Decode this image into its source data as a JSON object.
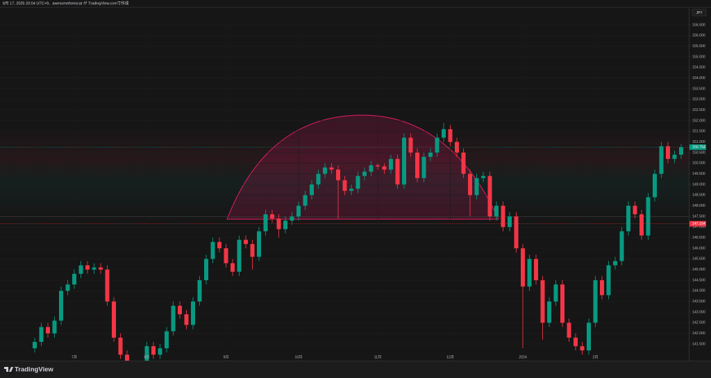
{
  "header": "8月 17, 2025 20:04 UTC+9、awesomeforexcat が TradingView.comで作成",
  "logo": "TradingView",
  "chart_data": {
    "type": "candlestick",
    "currency": "JPY",
    "up_color": "#089981",
    "down_color": "#f23645",
    "ylim": [
      141.11,
      157.28
    ],
    "yticks": [
      {
        "value": 141.5,
        "label": "141.500"
      },
      {
        "value": 142,
        "label": "142.000"
      },
      {
        "value": 142.5,
        "label": "142.500"
      },
      {
        "value": 143,
        "label": "143.000"
      },
      {
        "value": 143.5,
        "label": "143.500"
      },
      {
        "value": 144,
        "label": "144.000"
      },
      {
        "value": 144.5,
        "label": "144.500"
      },
      {
        "value": 145,
        "label": "145.000"
      },
      {
        "value": 145.5,
        "label": "145.500"
      },
      {
        "value": 146,
        "label": "146.000"
      },
      {
        "value": 146.5,
        "label": "146.500"
      },
      {
        "value": 147,
        "label": "147.000"
      },
      {
        "value": 147.5,
        "label": "147.500"
      },
      {
        "value": 148,
        "label": "148.000"
      },
      {
        "value": 148.5,
        "label": "148.500"
      },
      {
        "value": 149,
        "label": "149.000"
      },
      {
        "value": 149.5,
        "label": "149.500"
      },
      {
        "value": 150,
        "label": "150.000"
      },
      {
        "value": 150.5,
        "label": "150.500"
      },
      {
        "value": 151,
        "label": "151.000"
      },
      {
        "value": 151.5,
        "label": "151.500"
      },
      {
        "value": 152,
        "label": "152.000"
      },
      {
        "value": 152.5,
        "label": "152.500"
      },
      {
        "value": 153,
        "label": "153.000"
      },
      {
        "value": 153.5,
        "label": "153.500"
      },
      {
        "value": 154,
        "label": "154.000"
      },
      {
        "value": 154.5,
        "label": "154.500"
      },
      {
        "value": 155,
        "label": "155.000"
      },
      {
        "value": 155.5,
        "label": "155.500"
      },
      {
        "value": 156,
        "label": "156.000"
      },
      {
        "value": 156.5,
        "label": "156.500"
      }
    ],
    "xticks": [
      {
        "value": 6,
        "label": "7月"
      },
      {
        "value": 17,
        "label": "8月"
      },
      {
        "value": 29,
        "label": "9月"
      },
      {
        "value": 40,
        "label": "10月"
      },
      {
        "value": 52,
        "label": "11月"
      },
      {
        "value": 63,
        "label": "12月"
      },
      {
        "value": 74,
        "label": "2024"
      },
      {
        "value": 85,
        "label": "2月"
      }
    ],
    "price_labels": [
      {
        "value": 150.754,
        "label": "150.754",
        "color": "#089981"
      },
      {
        "value": 147.154,
        "label": "147.154",
        "color": "#f23645"
      }
    ],
    "open": [
      141.3,
      141.6,
      142.3,
      142.0,
      142.6,
      144.0,
      144.3,
      144.8,
      145.2,
      145.0,
      145.1,
      145.0,
      143.5,
      141.8,
      141.0,
      140.4,
      140.2,
      140.5,
      141.4,
      141.0,
      141.3,
      142.1,
      143.3,
      142.9,
      142.4,
      143.5,
      144.5,
      145.5,
      146.3,
      146.0,
      145.3,
      144.9,
      146.4,
      146.2,
      145.6,
      146.8,
      147.6,
      147.4,
      146.9,
      147.3,
      147.5,
      148.0,
      148.5,
      149.0,
      149.5,
      149.8,
      149.7,
      149.2,
      148.7,
      148.8,
      149.4,
      149.6,
      149.9,
      149.85,
      149.7,
      150.2,
      149.0,
      151.2,
      150.5,
      149.3,
      150.3,
      150.5,
      151.2,
      151.6,
      151.0,
      150.5,
      149.5,
      148.5,
      149.3,
      149.4,
      147.5,
      148.0,
      147.0,
      147.5,
      146.0,
      144.2,
      145.5,
      144.5,
      142.5,
      143.5,
      144.3,
      142.5,
      141.8,
      141.4,
      141.2,
      142.5,
      144.5,
      143.8,
      145.2,
      145.4,
      146.8,
      148.0,
      147.6,
      146.6,
      148.4,
      149.5,
      150.8,
      150.2,
      150.4
    ],
    "high": [
      141.8,
      142.5,
      142.5,
      142.8,
      144.2,
      144.5,
      145.0,
      145.4,
      145.4,
      145.3,
      145.3,
      145.2,
      143.7,
      142.0,
      141.2,
      140.6,
      140.7,
      141.6,
      141.6,
      141.5,
      142.3,
      143.5,
      143.5,
      143.1,
      143.7,
      144.7,
      145.7,
      146.5,
      146.5,
      146.2,
      145.5,
      146.6,
      146.6,
      146.4,
      147.0,
      147.8,
      147.8,
      147.6,
      147.5,
      147.7,
      148.2,
      148.7,
      149.2,
      149.7,
      150.0,
      150.0,
      149.9,
      149.4,
      149.0,
      149.6,
      149.8,
      150.1,
      150.0,
      150.0,
      150.4,
      150.4,
      151.4,
      151.4,
      150.7,
      150.5,
      150.7,
      151.4,
      151.9,
      151.8,
      151.2,
      150.7,
      149.7,
      149.5,
      149.6,
      149.6,
      148.2,
      148.2,
      147.7,
      147.7,
      146.2,
      145.7,
      145.7,
      144.7,
      143.7,
      144.5,
      144.5,
      142.7,
      142.0,
      141.6,
      142.7,
      144.7,
      144.7,
      145.4,
      145.6,
      147.0,
      148.2,
      148.2,
      147.8,
      148.6,
      149.7,
      151.0,
      151.0,
      150.6,
      150.9
    ],
    "low": [
      141.1,
      141.4,
      141.8,
      141.8,
      142.4,
      143.8,
      144.1,
      144.6,
      144.8,
      144.8,
      144.8,
      143.3,
      141.6,
      140.8,
      140.2,
      140.0,
      140.0,
      140.3,
      140.8,
      140.8,
      141.1,
      141.9,
      142.7,
      142.2,
      142.2,
      143.3,
      144.3,
      145.3,
      145.8,
      145.1,
      144.7,
      144.7,
      146.0,
      145.0,
      145.4,
      146.6,
      147.2,
      146.5,
      146.7,
      147.1,
      147.3,
      147.8,
      148.3,
      148.8,
      149.3,
      149.5,
      147.4,
      148.5,
      148.5,
      148.6,
      149.2,
      149.4,
      149.7,
      149.5,
      149.5,
      148.8,
      148.8,
      150.3,
      149.1,
      149.1,
      150.1,
      150.3,
      151.0,
      150.8,
      150.3,
      149.3,
      147.5,
      148.3,
      149.1,
      147.3,
      147.3,
      146.8,
      146.8,
      145.8,
      141.3,
      144.0,
      144.3,
      141.7,
      142.3,
      143.3,
      142.3,
      141.6,
      141.2,
      141.0,
      141.0,
      142.3,
      143.6,
      143.6,
      145.0,
      145.2,
      146.6,
      147.4,
      146.4,
      146.4,
      148.2,
      149.3,
      150.0,
      150.0,
      150.2
    ],
    "close": [
      141.6,
      142.3,
      142.0,
      142.6,
      144.0,
      144.3,
      144.8,
      145.2,
      145.0,
      145.1,
      145.0,
      143.5,
      141.8,
      141.0,
      140.4,
      140.2,
      140.5,
      141.4,
      141.0,
      141.3,
      142.1,
      143.3,
      142.9,
      142.4,
      143.5,
      144.5,
      145.5,
      146.3,
      146.0,
      145.3,
      144.9,
      146.4,
      146.2,
      145.6,
      146.8,
      147.6,
      147.4,
      146.9,
      147.3,
      147.5,
      148.0,
      148.5,
      149.0,
      149.5,
      149.8,
      149.7,
      149.2,
      148.7,
      148.8,
      149.4,
      149.6,
      149.9,
      149.85,
      149.7,
      150.2,
      149.0,
      151.2,
      150.5,
      149.3,
      150.3,
      150.5,
      151.2,
      151.6,
      151.0,
      150.5,
      149.5,
      148.5,
      149.3,
      149.4,
      147.5,
      148.0,
      147.0,
      147.5,
      146.0,
      144.2,
      145.5,
      144.5,
      142.5,
      143.5,
      144.3,
      142.5,
      141.8,
      141.4,
      141.2,
      142.5,
      144.5,
      143.8,
      145.2,
      145.4,
      146.8,
      148.0,
      147.6,
      146.6,
      148.4,
      149.5,
      150.8,
      150.2,
      150.4,
      150.754
    ]
  }
}
